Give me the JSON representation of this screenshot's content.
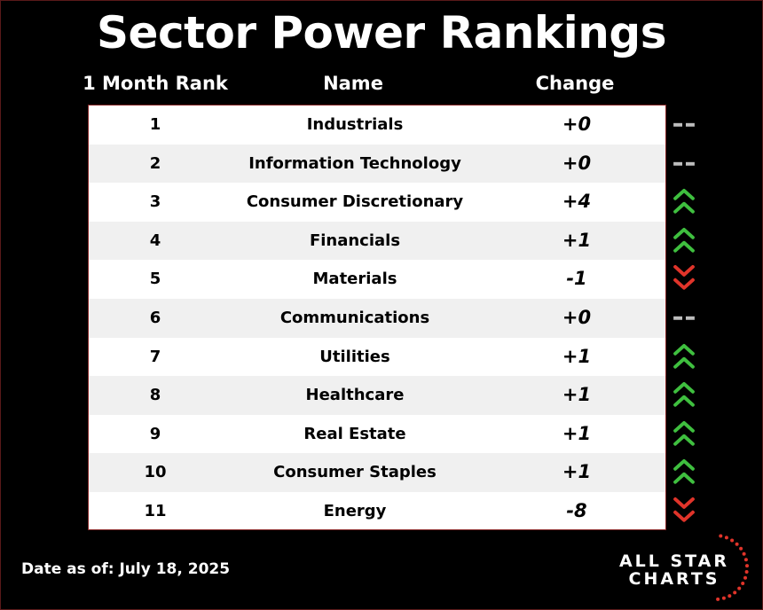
{
  "title": "Sector Power Rankings",
  "footer": {
    "date": "Date as of: July 18, 2025",
    "logo_line1": "ALL STAR",
    "logo_line2": "CHARTS"
  },
  "colors": {
    "up": "#3fbf3f",
    "down": "#e0342a",
    "flat": "#bdbdbd"
  },
  "chart_data": {
    "type": "table",
    "title": "Sector Power Rankings",
    "columns": [
      "1 Month Rank",
      "Name",
      "Change"
    ],
    "rows": [
      {
        "rank": "1",
        "name": "Industrials",
        "change": "+0",
        "trend": "flat"
      },
      {
        "rank": "2",
        "name": "Information Technology",
        "change": "+0",
        "trend": "flat"
      },
      {
        "rank": "3",
        "name": "Consumer Discretionary",
        "change": "+4",
        "trend": "up"
      },
      {
        "rank": "4",
        "name": "Financials",
        "change": "+1",
        "trend": "up"
      },
      {
        "rank": "5",
        "name": "Materials",
        "change": "-1",
        "trend": "down"
      },
      {
        "rank": "6",
        "name": "Communications",
        "change": "+0",
        "trend": "flat"
      },
      {
        "rank": "7",
        "name": "Utilities",
        "change": "+1",
        "trend": "up"
      },
      {
        "rank": "8",
        "name": "Healthcare",
        "change": "+1",
        "trend": "up"
      },
      {
        "rank": "9",
        "name": "Real Estate",
        "change": "+1",
        "trend": "up"
      },
      {
        "rank": "10",
        "name": "Consumer Staples",
        "change": "+1",
        "trend": "up"
      },
      {
        "rank": "11",
        "name": "Energy",
        "change": "-8",
        "trend": "down"
      }
    ]
  }
}
